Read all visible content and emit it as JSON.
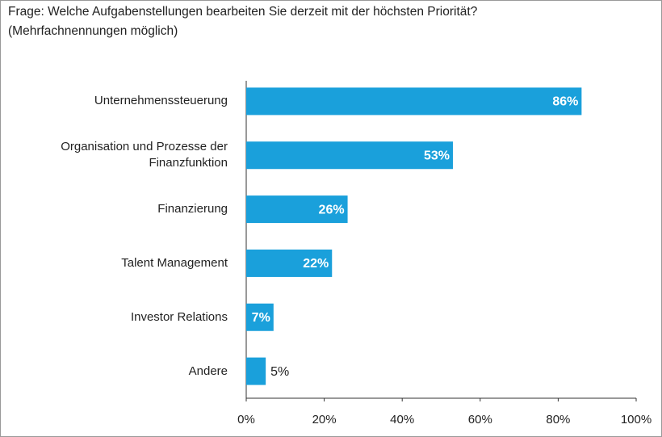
{
  "chart_data": {
    "type": "bar",
    "orientation": "horizontal",
    "title": "Frage: Welche Aufgabenstellungen bearbeiten Sie derzeit mit der höchsten Priorität?",
    "subtitle": "(Mehrfachnennungen möglich)",
    "categories": [
      "Unternehmenssteuerung",
      "Organisation und Prozesse der Finanzfunktion",
      "Finanzierung",
      "Talent Management",
      "Investor Relations",
      "Andere"
    ],
    "values": [
      86,
      53,
      26,
      22,
      7,
      5
    ],
    "value_labels": [
      "86%",
      "53%",
      "26%",
      "22%",
      "7%",
      "5%"
    ],
    "color": "#1aa0db",
    "xlim": [
      0,
      100
    ],
    "xticks": [
      {
        "value": 0,
        "label": "0%"
      },
      {
        "value": 20,
        "label": "20%"
      },
      {
        "value": 40,
        "label": "40%"
      },
      {
        "value": 60,
        "label": "60%"
      },
      {
        "value": 80,
        "label": "80%"
      },
      {
        "value": 100,
        "label": "100%"
      }
    ],
    "grid": false
  }
}
